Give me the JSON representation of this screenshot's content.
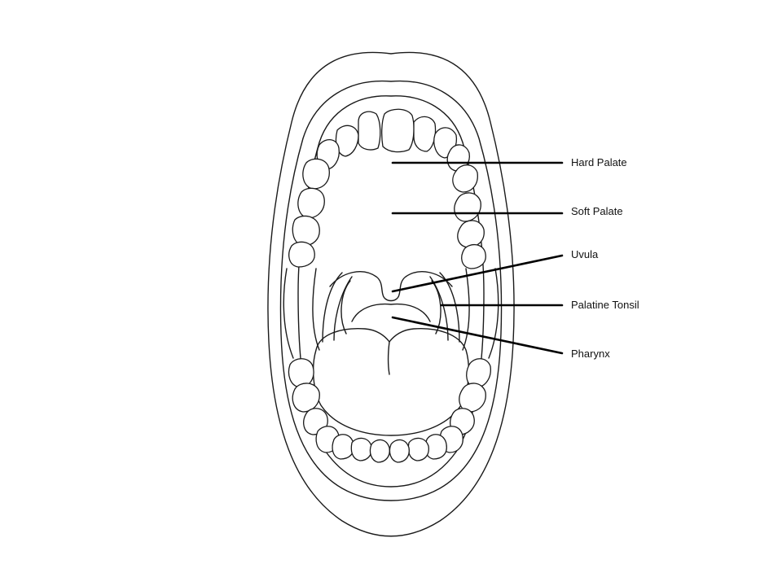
{
  "labels": {
    "hard_palate": "Hard Palate",
    "soft_palate": "Soft Palate",
    "uvula": "Uvula",
    "palatine_tonsil": "Palatine Tonsil",
    "pharynx": "Pharynx"
  }
}
